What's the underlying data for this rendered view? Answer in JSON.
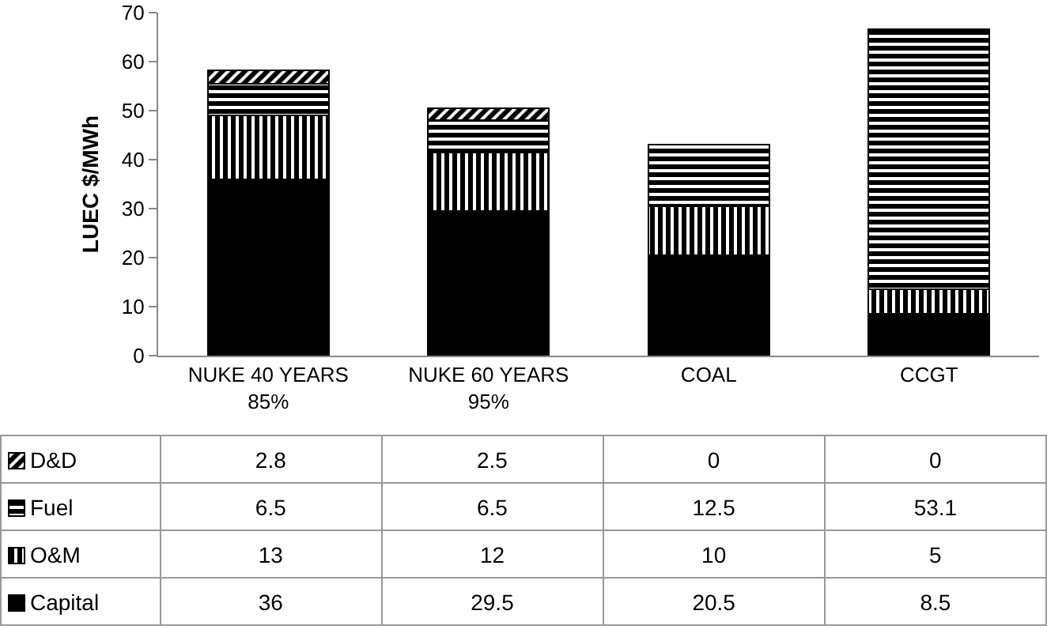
{
  "chart_data": {
    "type": "bar",
    "stacked": true,
    "ylabel": "LUEC $/MWh",
    "categories": [
      "NUKE 40 YEARS\n85%",
      "NUKE 60 YEARS\n95%",
      "COAL",
      "CCGT"
    ],
    "series": [
      {
        "name": "Capital",
        "color": "#000000",
        "values": [
          36,
          29.5,
          20.5,
          8.5
        ]
      },
      {
        "name": "O&M",
        "color": "#000000",
        "values": [
          13,
          12,
          10,
          5
        ]
      },
      {
        "name": "Fuel",
        "color": "#000000",
        "values": [
          6.5,
          6.5,
          12.5,
          53.1
        ]
      },
      {
        "name": "D&D",
        "color": "#000000",
        "values": [
          2.8,
          2.5,
          0,
          0
        ]
      }
    ],
    "ylim": [
      0,
      70
    ],
    "yticks": [
      0,
      10,
      20,
      30,
      40,
      50,
      60,
      70
    ],
    "data_labels": true,
    "legend": "bottom left"
  }
}
